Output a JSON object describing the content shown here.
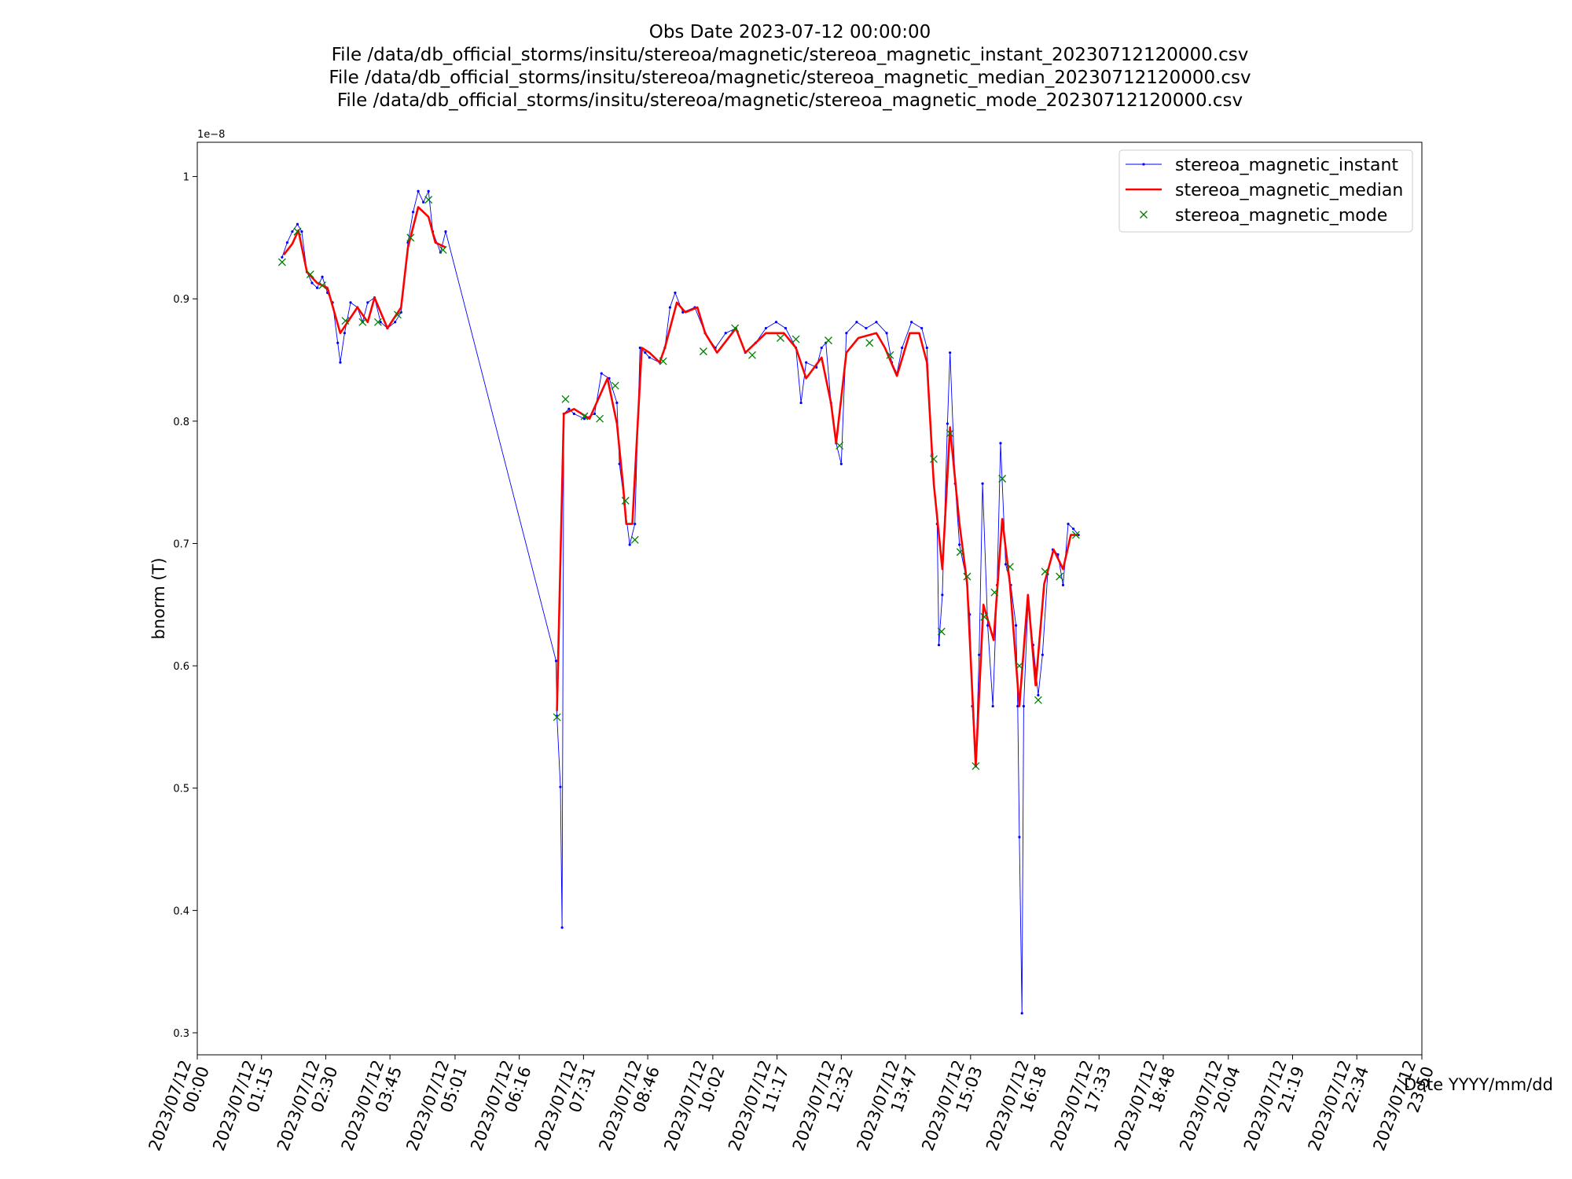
{
  "chart_data": {
    "type": "line",
    "title_lines": [
      "Obs Date 2023-07-12 00:00:00",
      "File /data/db_official_storms/insitu/stereoa/magnetic/stereoa_magnetic_instant_20230712120000.csv",
      "File /data/db_official_storms/insitu/stereoa/magnetic/stereoa_magnetic_median_20230712120000.csv",
      "File /data/db_official_storms/insitu/stereoa/magnetic/stereoa_magnetic_mode_20230712120000.csv"
    ],
    "xlabel": "Date YYYY/mm/dd",
    "ylabel": "bnorm (T)",
    "y_offset_label": "1e−8",
    "xlim": [
      0,
      1430
    ],
    "ylim": [
      0.282,
      1.028
    ],
    "xticks": [
      {
        "value": 0,
        "label": "2023/07/12\n00:00"
      },
      {
        "value": 75,
        "label": "2023/07/12\n01:15"
      },
      {
        "value": 150,
        "label": "2023/07/12\n02:30"
      },
      {
        "value": 225,
        "label": "2023/07/12\n03:45"
      },
      {
        "value": 301,
        "label": "2023/07/12\n05:01"
      },
      {
        "value": 376,
        "label": "2023/07/12\n06:16"
      },
      {
        "value": 451,
        "label": "2023/07/12\n07:31"
      },
      {
        "value": 526,
        "label": "2023/07/12\n08:46"
      },
      {
        "value": 602,
        "label": "2023/07/12\n10:02"
      },
      {
        "value": 677,
        "label": "2023/07/12\n11:17"
      },
      {
        "value": 752,
        "label": "2023/07/12\n12:32"
      },
      {
        "value": 827,
        "label": "2023/07/12\n13:47"
      },
      {
        "value": 903,
        "label": "2023/07/12\n15:03"
      },
      {
        "value": 978,
        "label": "2023/07/12\n16:18"
      },
      {
        "value": 1053,
        "label": "2023/07/12\n17:33"
      },
      {
        "value": 1128,
        "label": "2023/07/12\n18:48"
      },
      {
        "value": 1204,
        "label": "2023/07/12\n20:04"
      },
      {
        "value": 1279,
        "label": "2023/07/12\n21:19"
      },
      {
        "value": 1354,
        "label": "2023/07/12\n22:34"
      },
      {
        "value": 1430,
        "label": "2023/07/12\n23:50"
      }
    ],
    "yticks": [
      0.3,
      0.4,
      0.5,
      0.6,
      0.7,
      0.8,
      0.9,
      1.0
    ],
    "legend": "upper right",
    "series": [
      {
        "name": "stereoa_magnetic_instant",
        "color": "#0000ff",
        "line": true,
        "marker": ".",
        "x": [
          99,
          105,
          111,
          117,
          122,
          128,
          134,
          140,
          146,
          152,
          158,
          164,
          167,
          172,
          179,
          187,
          193,
          199,
          207,
          214,
          222,
          231,
          238,
          246,
          252,
          258,
          264,
          270,
          275,
          284,
          290,
          419,
          420,
          424,
          426,
          428,
          434,
          440,
          452,
          464,
          472,
          481,
          490,
          493,
          499,
          505,
          511,
          517,
          523,
          528,
          540,
          546,
          552,
          558,
          567,
          581,
          593,
          605,
          617,
          629,
          640,
          652,
          664,
          676,
          687,
          699,
          705,
          711,
          723,
          729,
          734,
          740,
          746,
          752,
          758,
          770,
          781,
          793,
          805,
          811,
          817,
          823,
          834,
          846,
          852,
          858,
          864,
          866,
          870,
          876,
          879,
          885,
          890,
          897,
          902,
          905,
          909,
          913,
          917,
          923,
          929,
          934,
          938,
          944,
          950,
          956,
          958,
          960,
          963,
          965,
          970,
          976,
          982,
          987,
          993,
          999,
          1005,
          1011,
          1017,
          1023,
          1029
        ],
        "values": [
          0.934,
          0.946,
          0.955,
          0.961,
          0.955,
          0.922,
          0.913,
          0.909,
          0.918,
          0.905,
          0.897,
          0.864,
          0.848,
          0.872,
          0.897,
          0.893,
          0.881,
          0.897,
          0.901,
          0.881,
          0.876,
          0.881,
          0.889,
          0.946,
          0.971,
          0.988,
          0.979,
          0.988,
          0.955,
          0.938,
          0.955,
          0.604,
          0.559,
          0.501,
          0.386,
          0.806,
          0.81,
          0.806,
          0.802,
          0.806,
          0.839,
          0.835,
          0.815,
          0.765,
          0.732,
          0.699,
          0.716,
          0.86,
          0.856,
          0.852,
          0.848,
          0.86,
          0.893,
          0.905,
          0.889,
          0.893,
          0.872,
          0.86,
          0.872,
          0.876,
          0.856,
          0.864,
          0.876,
          0.881,
          0.876,
          0.86,
          0.815,
          0.848,
          0.844,
          0.86,
          0.864,
          0.815,
          0.782,
          0.765,
          0.872,
          0.881,
          0.876,
          0.881,
          0.872,
          0.848,
          0.839,
          0.86,
          0.881,
          0.876,
          0.86,
          0.773,
          0.716,
          0.617,
          0.658,
          0.798,
          0.856,
          0.749,
          0.699,
          0.675,
          0.642,
          0.567,
          0.518,
          0.609,
          0.749,
          0.633,
          0.567,
          0.666,
          0.782,
          0.683,
          0.666,
          0.633,
          0.567,
          0.46,
          0.316,
          0.567,
          0.65,
          0.617,
          0.576,
          0.609,
          0.675,
          0.695,
          0.691,
          0.666,
          0.716,
          0.712,
          0.707
        ]
      },
      {
        "name": "stereoa_magnetic_median",
        "color": "#ff0000",
        "line": true,
        "marker": null,
        "x": [
          101,
          111,
          118,
          128,
          140,
          152,
          167,
          187,
          199,
          207,
          222,
          238,
          246,
          258,
          270,
          278,
          290,
          355,
          420,
          428,
          440,
          458,
          479,
          490,
          497,
          501,
          508,
          519,
          528,
          540,
          546,
          560,
          570,
          584,
          593,
          607,
          629,
          640,
          664,
          685,
          699,
          711,
          729,
          740,
          746,
          758,
          772,
          793,
          803,
          817,
          832,
          843,
          852,
          860,
          870,
          879,
          890,
          899,
          909,
          918,
          930,
          940,
          949,
          960,
          970,
          979,
          989,
          1000,
          1011,
          1020,
          1029
        ],
        "values": [
          0.936,
          0.945,
          0.956,
          0.922,
          0.913,
          0.909,
          0.872,
          0.893,
          0.881,
          0.901,
          0.876,
          0.893,
          0.942,
          0.975,
          0.967,
          0.946,
          0.942,
          null,
          0.563,
          0.806,
          0.81,
          0.802,
          0.835,
          0.798,
          0.749,
          0.716,
          0.716,
          0.86,
          0.856,
          0.848,
          0.86,
          0.897,
          0.889,
          0.893,
          0.872,
          0.856,
          0.876,
          0.856,
          0.872,
          0.872,
          0.86,
          0.835,
          0.852,
          0.815,
          0.782,
          0.856,
          0.868,
          0.872,
          0.86,
          0.837,
          0.872,
          0.872,
          0.848,
          0.749,
          0.679,
          0.795,
          0.716,
          0.667,
          0.518,
          0.65,
          0.621,
          0.72,
          0.667,
          0.567,
          0.658,
          0.584,
          0.667,
          0.695,
          0.679,
          0.707,
          0.707
        ]
      },
      {
        "name": "stereoa_magnetic_mode",
        "color": "#008000",
        "line": false,
        "marker": "x",
        "x": [
          99,
          117,
          132,
          146,
          173,
          193,
          211,
          234,
          249,
          270,
          287,
          420,
          430,
          452,
          470,
          488,
          500,
          511,
          544,
          591,
          628,
          648,
          681,
          699,
          737,
          750,
          785,
          809,
          860,
          869,
          879,
          891,
          899,
          909,
          919,
          931,
          940,
          949,
          960,
          982,
          990,
          1007,
          1026
        ],
        "values": [
          0.93,
          0.955,
          0.92,
          0.911,
          0.882,
          0.881,
          0.881,
          0.887,
          0.95,
          0.981,
          0.94,
          0.558,
          0.818,
          0.804,
          0.802,
          0.829,
          0.735,
          0.703,
          0.849,
          0.857,
          0.876,
          0.854,
          0.868,
          0.867,
          0.866,
          0.78,
          0.864,
          0.854,
          0.769,
          0.628,
          0.79,
          0.693,
          0.673,
          0.518,
          0.64,
          0.66,
          0.753,
          0.681,
          0.6,
          0.572,
          0.677,
          0.673,
          0.707
        ]
      }
    ]
  }
}
